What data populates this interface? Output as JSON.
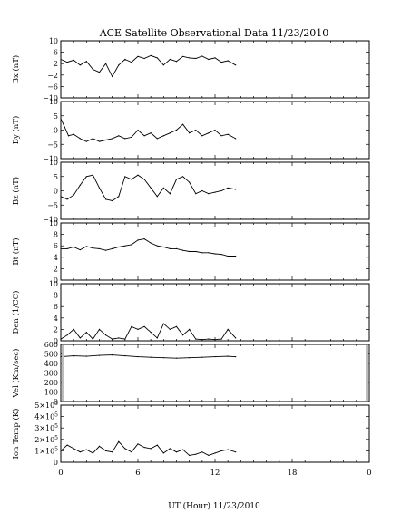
{
  "chart_data": {
    "type": "line",
    "title": "ACE Satellite Observational Data   11/23/2010",
    "xlabel": "UT (Hour)   11/23/2010",
    "x_ticks": [
      "0",
      "6",
      "12",
      "18",
      "0"
    ],
    "xlim": [
      0,
      24
    ],
    "data_end_hour": 13.6,
    "panels": [
      {
        "id": "bx",
        "ylabel": "Bx (nT)",
        "ylim": [
          -10,
          10
        ],
        "yticks": [
          {
            "v": 10,
            "t": "10"
          },
          {
            "v": 6,
            "t": "6"
          },
          {
            "v": 2,
            "t": "2"
          },
          {
            "v": -2,
            "t": "−2"
          },
          {
            "v": -6,
            "t": "−6"
          },
          {
            "v": -10,
            "t": "−10"
          }
        ],
        "points": [
          [
            0,
            3.5
          ],
          [
            0.5,
            2.5
          ],
          [
            1,
            3.2
          ],
          [
            1.5,
            1.5
          ],
          [
            2,
            2.8
          ],
          [
            2.5,
            0
          ],
          [
            3,
            -1
          ],
          [
            3.5,
            2
          ],
          [
            4,
            -2.5
          ],
          [
            4.5,
            1.5
          ],
          [
            5,
            3.5
          ],
          [
            5.5,
            2.5
          ],
          [
            6,
            4.5
          ],
          [
            6.5,
            3.8
          ],
          [
            7,
            4.8
          ],
          [
            7.5,
            4.0
          ],
          [
            8,
            1.5
          ],
          [
            8.5,
            3.5
          ],
          [
            9,
            2.8
          ],
          [
            9.5,
            4.5
          ],
          [
            10,
            4.0
          ],
          [
            10.5,
            3.8
          ],
          [
            11,
            4.6
          ],
          [
            11.5,
            3.5
          ],
          [
            12,
            4.0
          ],
          [
            12.5,
            2.5
          ],
          [
            13,
            3.0
          ],
          [
            13.6,
            1.5
          ]
        ]
      },
      {
        "id": "by",
        "ylabel": "By (nT)",
        "ylim": [
          -10,
          10
        ],
        "yticks": [
          {
            "v": 10,
            "t": "10"
          },
          {
            "v": 5,
            "t": "5"
          },
          {
            "v": 0,
            "t": "0"
          },
          {
            "v": -5,
            "t": "−5"
          },
          {
            "v": -10,
            "t": "−10"
          }
        ],
        "points": [
          [
            0,
            4
          ],
          [
            0.3,
            1
          ],
          [
            0.6,
            -2
          ],
          [
            1,
            -1.5
          ],
          [
            1.5,
            -3
          ],
          [
            2,
            -4
          ],
          [
            2.5,
            -3
          ],
          [
            3,
            -4
          ],
          [
            3.5,
            -3.5
          ],
          [
            4,
            -3
          ],
          [
            4.5,
            -2
          ],
          [
            5,
            -3
          ],
          [
            5.5,
            -2.5
          ],
          [
            6,
            0
          ],
          [
            6.5,
            -2
          ],
          [
            7,
            -1
          ],
          [
            7.5,
            -3
          ],
          [
            8,
            -2
          ],
          [
            8.5,
            -1
          ],
          [
            9,
            0
          ],
          [
            9.5,
            2
          ],
          [
            10,
            -1
          ],
          [
            10.5,
            0
          ],
          [
            11,
            -2
          ],
          [
            11.5,
            -1
          ],
          [
            12,
            0
          ],
          [
            12.5,
            -2
          ],
          [
            13,
            -1.5
          ],
          [
            13.6,
            -3
          ]
        ]
      },
      {
        "id": "bz",
        "ylabel": "Bz (nT)",
        "ylim": [
          -10,
          10
        ],
        "yticks": [
          {
            "v": 10,
            "t": "10"
          },
          {
            "v": 5,
            "t": "5"
          },
          {
            "v": 0,
            "t": "0"
          },
          {
            "v": -5,
            "t": "−5"
          },
          {
            "v": -10,
            "t": "−10"
          }
        ],
        "points": [
          [
            0,
            -2
          ],
          [
            0.5,
            -3
          ],
          [
            1,
            -1.5
          ],
          [
            1.5,
            2
          ],
          [
            2,
            5
          ],
          [
            2.5,
            5.5
          ],
          [
            3,
            1
          ],
          [
            3.5,
            -3
          ],
          [
            4,
            -3.5
          ],
          [
            4.5,
            -2
          ],
          [
            5,
            5
          ],
          [
            5.5,
            4
          ],
          [
            6,
            5.5
          ],
          [
            6.5,
            4
          ],
          [
            7,
            1
          ],
          [
            7.5,
            -2
          ],
          [
            8,
            1
          ],
          [
            8.5,
            -1
          ],
          [
            9,
            4
          ],
          [
            9.5,
            5
          ],
          [
            10,
            3
          ],
          [
            10.5,
            -1
          ],
          [
            11,
            0
          ],
          [
            11.5,
            -1
          ],
          [
            12,
            -0.5
          ],
          [
            12.5,
            0
          ],
          [
            13,
            1
          ],
          [
            13.6,
            0.5
          ]
        ]
      },
      {
        "id": "bt",
        "ylabel": "Bt (nT)",
        "ylim": [
          0,
          10
        ],
        "yticks": [
          {
            "v": 10,
            "t": "10"
          },
          {
            "v": 8,
            "t": "8"
          },
          {
            "v": 6,
            "t": "6"
          },
          {
            "v": 4,
            "t": "4"
          },
          {
            "v": 2,
            "t": "2"
          },
          {
            "v": 0,
            "t": "0"
          }
        ],
        "points": [
          [
            0,
            5.5
          ],
          [
            0.5,
            5.5
          ],
          [
            1,
            5.8
          ],
          [
            1.5,
            5.3
          ],
          [
            2,
            5.9
          ],
          [
            2.5,
            5.6
          ],
          [
            3,
            5.5
          ],
          [
            3.5,
            5.2
          ],
          [
            4,
            5.5
          ],
          [
            4.5,
            5.8
          ],
          [
            5,
            6.0
          ],
          [
            5.5,
            6.2
          ],
          [
            6,
            7.0
          ],
          [
            6.5,
            7.2
          ],
          [
            7,
            6.5
          ],
          [
            7.5,
            6.0
          ],
          [
            8,
            5.8
          ],
          [
            8.5,
            5.5
          ],
          [
            9,
            5.5
          ],
          [
            9.5,
            5.2
          ],
          [
            10,
            5.0
          ],
          [
            10.5,
            5.0
          ],
          [
            11,
            4.8
          ],
          [
            11.5,
            4.8
          ],
          [
            12,
            4.6
          ],
          [
            12.5,
            4.5
          ],
          [
            13,
            4.2
          ],
          [
            13.6,
            4.2
          ]
        ]
      },
      {
        "id": "den",
        "ylabel": "Den (1/CC)",
        "ylim": [
          0,
          10
        ],
        "yticks": [
          {
            "v": 10,
            "t": "10"
          },
          {
            "v": 8,
            "t": "8"
          },
          {
            "v": 6,
            "t": "6"
          },
          {
            "v": 4,
            "t": "4"
          },
          {
            "v": 2,
            "t": "2"
          },
          {
            "v": 0,
            "t": "0"
          }
        ],
        "points": [
          [
            0,
            0.3
          ],
          [
            0.5,
            1
          ],
          [
            1,
            2
          ],
          [
            1.5,
            0.5
          ],
          [
            2,
            1.5
          ],
          [
            2.5,
            0.3
          ],
          [
            3,
            2
          ],
          [
            3.5,
            1
          ],
          [
            4,
            0.3
          ],
          [
            4.5,
            0.5
          ],
          [
            5,
            0.3
          ],
          [
            5.5,
            2.5
          ],
          [
            6,
            2
          ],
          [
            6.5,
            2.5
          ],
          [
            7,
            1.5
          ],
          [
            7.5,
            0.5
          ],
          [
            8,
            3
          ],
          [
            8.5,
            2
          ],
          [
            9,
            2.5
          ],
          [
            9.5,
            1
          ],
          [
            10,
            2
          ],
          [
            10.5,
            0.3
          ],
          [
            11,
            0.2
          ],
          [
            11.5,
            0.3
          ],
          [
            12,
            0.2
          ],
          [
            12.5,
            0.3
          ],
          [
            13,
            2
          ],
          [
            13.6,
            0.5
          ]
        ]
      },
      {
        "id": "vel",
        "ylabel": "Vel (Km/sec)",
        "ylim": [
          0,
          600
        ],
        "yticks": [
          {
            "v": 600,
            "t": "600"
          },
          {
            "v": 500,
            "t": "500"
          },
          {
            "v": 400,
            "t": "400"
          },
          {
            "v": 300,
            "t": "300"
          },
          {
            "v": 200,
            "t": "200"
          },
          {
            "v": 100,
            "t": "100"
          },
          {
            "v": 0,
            "t": "0"
          }
        ],
        "points": [
          [
            0,
            470
          ],
          [
            1,
            480
          ],
          [
            2,
            475
          ],
          [
            3,
            485
          ],
          [
            4,
            490
          ],
          [
            5,
            480
          ],
          [
            6,
            470
          ],
          [
            7,
            465
          ],
          [
            8,
            460
          ],
          [
            9,
            455
          ],
          [
            10,
            460
          ],
          [
            11,
            465
          ],
          [
            12,
            470
          ],
          [
            13,
            475
          ],
          [
            13.6,
            470
          ]
        ]
      },
      {
        "id": "temp",
        "ylabel": "Ion Temp (K)",
        "ylim": [
          0,
          500000
        ],
        "yticks": [
          {
            "v": 500000,
            "m": "5×10",
            "e": "5"
          },
          {
            "v": 400000,
            "m": "4×10",
            "e": "5"
          },
          {
            "v": 300000,
            "m": "3×10",
            "e": "5"
          },
          {
            "v": 200000,
            "m": "2×10",
            "e": "5"
          },
          {
            "v": 100000,
            "m": "1×10",
            "e": "5"
          },
          {
            "v": 0,
            "m": "0",
            "e": ""
          }
        ],
        "points": [
          [
            0,
            100000
          ],
          [
            0.5,
            150000
          ],
          [
            1,
            120000
          ],
          [
            1.5,
            90000
          ],
          [
            2,
            110000
          ],
          [
            2.5,
            80000
          ],
          [
            3,
            140000
          ],
          [
            3.5,
            100000
          ],
          [
            4,
            90000
          ],
          [
            4.5,
            180000
          ],
          [
            5,
            120000
          ],
          [
            5.5,
            90000
          ],
          [
            6,
            160000
          ],
          [
            6.5,
            130000
          ],
          [
            7,
            120000
          ],
          [
            7.5,
            150000
          ],
          [
            8,
            80000
          ],
          [
            8.5,
            120000
          ],
          [
            9,
            90000
          ],
          [
            9.5,
            110000
          ],
          [
            10,
            60000
          ],
          [
            10.5,
            70000
          ],
          [
            11,
            90000
          ],
          [
            11.5,
            60000
          ],
          [
            12,
            80000
          ],
          [
            12.5,
            100000
          ],
          [
            13,
            110000
          ],
          [
            13.6,
            90000
          ]
        ]
      }
    ]
  }
}
